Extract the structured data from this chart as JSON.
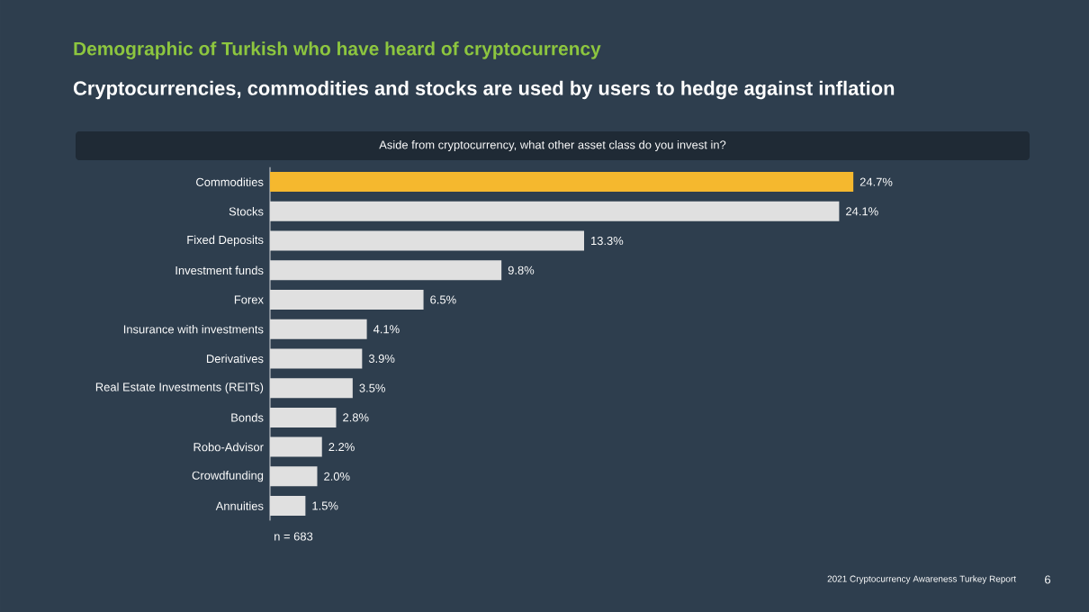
{
  "chart_data": {
    "type": "bar",
    "orientation": "horizontal",
    "title": "Demographic of Turkish who have heard of cryptocurrency",
    "subtitle": "Cryptocurrencies, commodities and stocks are used by users to hedge against inflation",
    "categories": [
      "Commodities",
      "Stocks",
      "Fixed Deposits",
      "Investment funds",
      "Forex",
      "Insurance with investments",
      "Derivatives",
      "Real Estate Investments (REITs)",
      "Bonds",
      "Robo-Advisor",
      "Crowdfunding",
      "Annuities"
    ],
    "values": [
      24.7,
      24.1,
      13.3,
      9.8,
      6.5,
      4.1,
      3.9,
      3.5,
      2.8,
      2.2,
      2.0,
      1.5
    ],
    "value_labels": [
      "24.7%",
      "24.1%",
      "13.3%",
      "9.8%",
      "6.5%",
      "4.1%",
      "3.9%",
      "3.5%",
      "2.8%",
      "2.2%",
      "2.0%",
      "1.5%"
    ],
    "colors": [
      "#f5b82e",
      "#e0e0e0",
      "#e0e0e0",
      "#e0e0e0",
      "#e0e0e0",
      "#e0e0e0",
      "#e0e0e0",
      "#e0e0e0",
      "#e0e0e0",
      "#e0e0e0",
      "#e0e0e0",
      "#e0e0e0"
    ],
    "annotations": [
      "Aside from cryptocurrency, what other asset class do you invest in?",
      "n = 683",
      "2021 Cryptocurrency Awareness Turkey Report",
      "6"
    ]
  }
}
